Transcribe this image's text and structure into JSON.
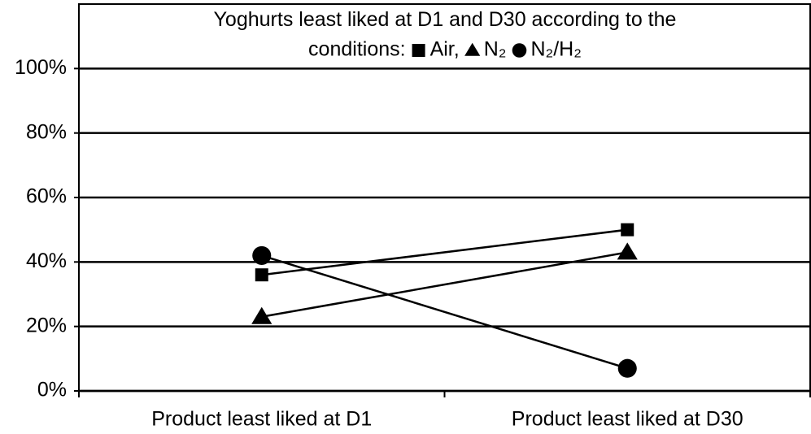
{
  "chart_data": {
    "type": "line",
    "title": "Yoghurts least liked at D1 and D30 according to the conditions:",
    "categories": [
      "Product least liked at D1",
      "Product least liked at D30"
    ],
    "series": [
      {
        "name": "Air,",
        "color": "#000000",
        "marker": "square",
        "values": [
          36,
          50
        ]
      },
      {
        "name": "N₂",
        "color": "#000000",
        "marker": "triangle",
        "values": [
          23,
          43
        ]
      },
      {
        "name": "N₂/H₂",
        "color": "#000000",
        "marker": "circle",
        "values": [
          42,
          7
        ]
      }
    ],
    "ylim": [
      0,
      120
    ],
    "yticks": [
      {
        "value": 0,
        "label": "0%"
      },
      {
        "value": 20,
        "label": "20%"
      },
      {
        "value": 40,
        "label": "40%"
      },
      {
        "value": 60,
        "label": "60%"
      },
      {
        "value": 80,
        "label": "80%"
      },
      {
        "value": 100,
        "label": "100%"
      }
    ],
    "grid": true
  }
}
